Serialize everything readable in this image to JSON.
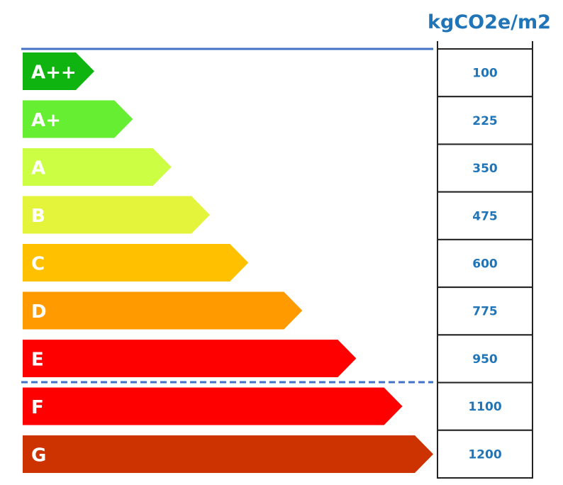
{
  "unit_label": "kgCO2e/m2",
  "chart_data": {
    "type": "bar",
    "categories": [
      "A++",
      "A+",
      "A",
      "B",
      "C",
      "D",
      "E",
      "F",
      "G"
    ],
    "values": [
      100,
      225,
      350,
      475,
      600,
      775,
      950,
      1100,
      1200
    ],
    "value_labels": [
      "100",
      "225",
      "350",
      "475",
      "600",
      "775",
      "950",
      "1100",
      "1200"
    ],
    "bar_colors": [
      "#10b410",
      "#66ee33",
      "#ccff44",
      "#e4f43a",
      "#ffc000",
      "#ff9a00",
      "#ff0000",
      "#ff0000",
      "#cc3300"
    ],
    "label_color": "#ffffff",
    "value_color": "#1f75b8",
    "line_color": "#4472c4",
    "dashed_line_after_index": 6,
    "orientation": "horizontal",
    "grid": false,
    "legend": "none"
  }
}
